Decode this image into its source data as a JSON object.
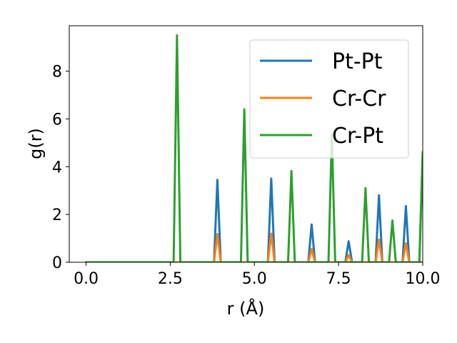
{
  "chart_data": {
    "type": "line",
    "xlabel": "r (Å)",
    "ylabel": "g(r)",
    "xlim": [
      -0.5,
      10.0
    ],
    "ylim": [
      0,
      9.9
    ],
    "xticks": [
      "0.0",
      "2.5",
      "5.0",
      "7.5",
      "10.0"
    ],
    "yticks": [
      "0",
      "2",
      "4",
      "6",
      "8"
    ],
    "legend_position": "top-right",
    "series": [
      {
        "name": "Pt-Pt",
        "color": "#1f77b4",
        "x": [
          0,
          2.6,
          2.7,
          2.8,
          3.8,
          3.9,
          4.0,
          4.6,
          4.7,
          4.8,
          5.4,
          5.5,
          5.6,
          6.0,
          6.1,
          6.2,
          6.6,
          6.7,
          6.8,
          7.2,
          7.3,
          7.4,
          7.7,
          7.8,
          7.9,
          8.2,
          8.3,
          8.4,
          8.6,
          8.7,
          8.8,
          9.0,
          9.1,
          9.2,
          9.4,
          9.5,
          9.6,
          9.9,
          10.0
        ],
        "y": [
          0,
          0,
          0,
          0,
          0,
          3.45,
          0,
          0,
          0,
          0,
          0,
          3.5,
          0,
          0,
          0,
          0,
          0,
          1.58,
          0,
          0,
          0,
          0,
          0,
          0.88,
          0,
          0,
          0,
          0,
          0,
          2.8,
          0,
          0,
          0,
          0,
          0,
          2.35,
          0,
          0,
          4.6
        ]
      },
      {
        "name": "Cr-Cr",
        "color": "#ff7f0e",
        "x": [
          0,
          3.8,
          3.9,
          4.0,
          5.4,
          5.5,
          5.6,
          6.6,
          6.7,
          6.8,
          7.7,
          7.8,
          7.9,
          8.6,
          8.7,
          8.8,
          9.4,
          9.5,
          9.6,
          10.0
        ],
        "y": [
          0,
          0,
          1.18,
          0,
          0,
          1.2,
          0,
          0,
          0.55,
          0,
          0,
          0.3,
          0,
          0,
          0.95,
          0,
          0,
          0.8,
          0,
          0
        ]
      },
      {
        "name": "Cr-Pt",
        "color": "#2ca02c",
        "x": [
          0,
          2.6,
          2.7,
          2.8,
          4.6,
          4.7,
          4.8,
          6.0,
          6.1,
          6.2,
          7.2,
          7.3,
          7.4,
          8.2,
          8.3,
          8.4,
          9.0,
          9.1,
          9.2,
          9.9,
          10.0
        ],
        "y": [
          0,
          0,
          9.5,
          0,
          0,
          6.4,
          0,
          0,
          3.82,
          0,
          0,
          5.35,
          0,
          0,
          3.1,
          0,
          0,
          1.75,
          0,
          0,
          4.6
        ]
      }
    ]
  }
}
